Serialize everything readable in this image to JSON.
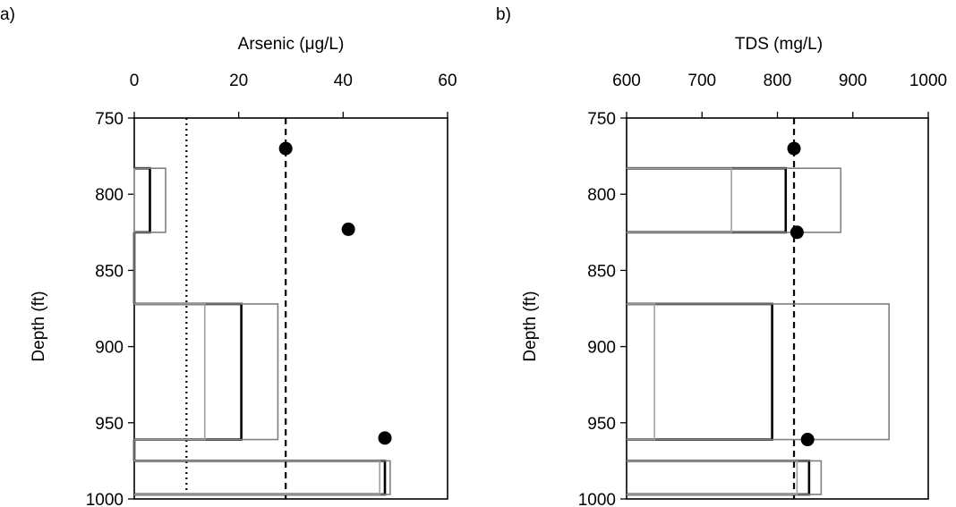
{
  "chart_data": [
    {
      "panel_label": "a)",
      "type": "line",
      "xlabel": "Arsenic (μg/L)",
      "ylabel": "Depth (ft)",
      "xlim": [
        0,
        60
      ],
      "ylim": [
        750,
        1000
      ],
      "y_inverted": true,
      "x_axis_position": "top",
      "x_ticks": [
        0,
        20,
        40,
        60
      ],
      "y_ticks": [
        750,
        800,
        850,
        900,
        950,
        1000
      ],
      "points": [
        {
          "x": 29,
          "y": 770
        },
        {
          "x": 41,
          "y": 823
        },
        {
          "x": 48,
          "y": 960
        }
      ],
      "reference_lines": [
        {
          "x": 10,
          "style": "dotted"
        },
        {
          "x": 29,
          "style": "dashed"
        }
      ],
      "profiles": [
        {
          "color": "#000000",
          "segments": [
            {
              "top": 783,
              "bottom": 825,
              "value": 3
            },
            {
              "top": 825,
              "bottom": 872,
              "value": 0
            },
            {
              "top": 872,
              "bottom": 961,
              "value": 20.5
            },
            {
              "top": 961,
              "bottom": 975,
              "value": 0
            },
            {
              "top": 975,
              "bottom": 997,
              "value": 48
            }
          ]
        },
        {
          "color": "#808080",
          "segments": [
            {
              "top": 783,
              "bottom": 825,
              "value": 6
            },
            {
              "top": 825,
              "bottom": 872,
              "value": 0
            },
            {
              "top": 872,
              "bottom": 961,
              "value": 27.5
            },
            {
              "top": 961,
              "bottom": 975,
              "value": 0
            },
            {
              "top": 975,
              "bottom": 997,
              "value": 49
            }
          ]
        },
        {
          "color": "#a0a0a0",
          "segments": [
            {
              "top": 783,
              "bottom": 825,
              "value": 0
            },
            {
              "top": 872,
              "bottom": 961,
              "value": 13.5
            },
            {
              "top": 975,
              "bottom": 997,
              "value": 47
            }
          ]
        }
      ]
    },
    {
      "panel_label": "b)",
      "type": "line",
      "xlabel": "TDS (mg/L)",
      "ylabel": "Depth (ft)",
      "xlim": [
        600,
        1000
      ],
      "ylim": [
        750,
        1000
      ],
      "y_inverted": true,
      "x_axis_position": "top",
      "x_ticks": [
        600,
        700,
        800,
        900,
        1000
      ],
      "y_ticks": [
        750,
        800,
        850,
        900,
        950,
        1000
      ],
      "points": [
        {
          "x": 822,
          "y": 770
        },
        {
          "x": 826,
          "y": 825
        },
        {
          "x": 840,
          "y": 961
        }
      ],
      "reference_lines": [
        {
          "x": 822,
          "style": "dashed"
        }
      ],
      "profiles": [
        {
          "color": "#000000",
          "segments": [
            {
              "top": 783,
              "bottom": 825,
              "value": 811
            },
            {
              "top": 872,
              "bottom": 961,
              "value": 793
            },
            {
              "top": 975,
              "bottom": 997,
              "value": 842
            }
          ]
        },
        {
          "color": "#808080",
          "segments": [
            {
              "top": 783,
              "bottom": 825,
              "value": 884
            },
            {
              "top": 872,
              "bottom": 961,
              "value": 948
            },
            {
              "top": 975,
              "bottom": 997,
              "value": 858
            }
          ]
        },
        {
          "color": "#a0a0a0",
          "segments": [
            {
              "top": 783,
              "bottom": 825,
              "value": 739
            },
            {
              "top": 872,
              "bottom": 961,
              "value": 637
            },
            {
              "top": 975,
              "bottom": 997,
              "value": 826
            }
          ]
        }
      ]
    }
  ]
}
